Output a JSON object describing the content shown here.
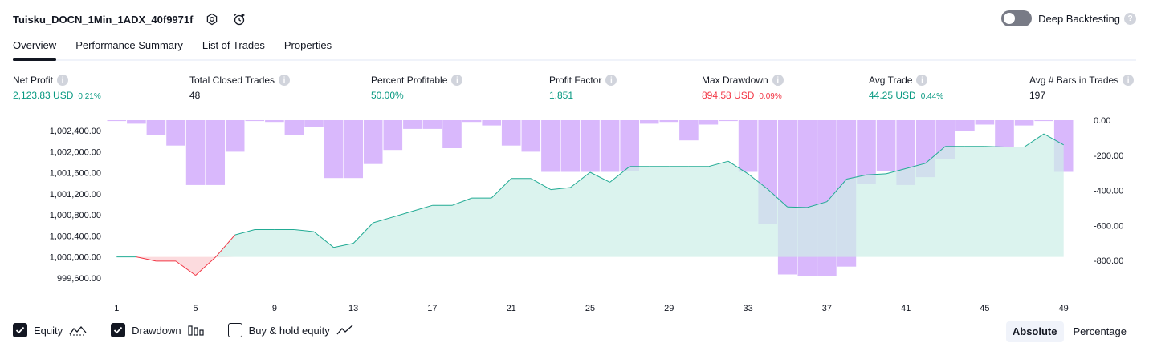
{
  "header": {
    "strategy_name": "Tuisku_DOCN_1Min_1ADX_40f9971f",
    "icons": [
      "settings-icon",
      "add-alert-icon"
    ],
    "deep_backtesting_label": "Deep Backtesting",
    "deep_backtesting_enabled": false
  },
  "tabs": [
    {
      "label": "Overview",
      "active": true
    },
    {
      "label": "Performance Summary",
      "active": false
    },
    {
      "label": "List of Trades",
      "active": false
    },
    {
      "label": "Properties",
      "active": false
    }
  ],
  "metrics": {
    "net_profit": {
      "label": "Net Profit",
      "value": "2,123.83 USD",
      "pct": "0.21%"
    },
    "total_closed_trades": {
      "label": "Total Closed Trades",
      "value": "48"
    },
    "percent_profitable": {
      "label": "Percent Profitable",
      "value": "50.00%"
    },
    "profit_factor": {
      "label": "Profit Factor",
      "value": "1.851"
    },
    "max_drawdown": {
      "label": "Max Drawdown",
      "value": "894.58 USD",
      "pct": "0.09%"
    },
    "avg_trade": {
      "label": "Avg Trade",
      "value": "44.25 USD",
      "pct": "0.44%"
    },
    "avg_bars": {
      "label": "Avg # Bars in Trades",
      "value": "197"
    }
  },
  "colors": {
    "equity_line": "#22ab94",
    "equity_fill": "#cdeee7",
    "equity_negative": "#f23645",
    "drawdown_bar": "#d9b8fc",
    "positive_text": "#089981",
    "negative_text": "#f23645"
  },
  "chart_data": {
    "type": "area",
    "x_ticks": [
      "1",
      "5",
      "9",
      "13",
      "17",
      "21",
      "25",
      "29",
      "33",
      "37",
      "41",
      "45",
      "49"
    ],
    "left_axis": {
      "ticks": [
        "1,002,400.00",
        "1,002,000.00",
        "1,001,600.00",
        "1,001,200.00",
        "1,000,800.00",
        "1,000,400.00",
        "1,000,000.00",
        "999,600.00"
      ],
      "ylim": [
        999400,
        1002600
      ],
      "baseline": 1000000
    },
    "right_axis": {
      "ticks": [
        "0.00",
        "-200.00",
        "-400.00",
        "-600.00",
        "-800.00"
      ],
      "ylim": [
        -960,
        0
      ]
    },
    "series": [
      {
        "name": "Equity",
        "type": "area",
        "x": [
          1,
          2,
          3,
          4,
          5,
          6,
          7,
          8,
          9,
          10,
          11,
          12,
          13,
          14,
          15,
          16,
          17,
          18,
          19,
          20,
          21,
          22,
          23,
          24,
          25,
          26,
          27,
          28,
          29,
          30,
          31,
          32,
          33,
          34,
          35,
          36,
          37,
          38,
          39,
          40,
          41,
          42,
          43,
          44,
          45,
          46,
          47,
          48,
          49
        ],
        "values": [
          1000000,
          1000000,
          999920,
          999920,
          999650,
          999990,
          1000420,
          1000520,
          1000520,
          1000520,
          1000480,
          1000180,
          1000260,
          1000650,
          1000760,
          1000870,
          1000980,
          1000980,
          1001120,
          1001120,
          1001490,
          1001490,
          1001280,
          1001320,
          1001610,
          1001420,
          1001720,
          1001720,
          1001720,
          1001720,
          1001720,
          1001820,
          1001580,
          1001290,
          1000950,
          1000940,
          1001050,
          1001480,
          1001560,
          1001580,
          1001680,
          1001780,
          1002100,
          1002100,
          1002100,
          1002090,
          1002090,
          1002340,
          1002130
        ]
      },
      {
        "name": "Drawdown",
        "type": "bar",
        "x": [
          1,
          2,
          3,
          4,
          5,
          6,
          7,
          8,
          9,
          10,
          11,
          12,
          13,
          14,
          15,
          16,
          17,
          18,
          19,
          20,
          21,
          22,
          23,
          24,
          25,
          26,
          27,
          28,
          29,
          30,
          31,
          32,
          33,
          34,
          35,
          36,
          37,
          38,
          39,
          40,
          41,
          42,
          43,
          44,
          45,
          46,
          47,
          48,
          49
        ],
        "values": [
          -5,
          -20,
          -85,
          -145,
          -370,
          -370,
          -180,
          -5,
          -10,
          -85,
          -40,
          -330,
          -330,
          -250,
          -170,
          -50,
          -50,
          -160,
          -10,
          -30,
          -145,
          -180,
          -295,
          -295,
          -295,
          -295,
          -290,
          -20,
          -10,
          -115,
          -25,
          -5,
          -295,
          -590,
          -880,
          -890,
          -890,
          -835,
          -365,
          -290,
          -370,
          -325,
          -220,
          -60,
          -25,
          -155,
          -30,
          -5,
          -295
        ]
      }
    ]
  },
  "legend": {
    "equity": {
      "label": "Equity",
      "checked": true
    },
    "drawdown": {
      "label": "Drawdown",
      "checked": true
    },
    "buy_hold": {
      "label": "Buy & hold equity",
      "checked": false
    }
  },
  "mode": {
    "absolute": "Absolute",
    "percentage": "Percentage",
    "active": "absolute"
  }
}
